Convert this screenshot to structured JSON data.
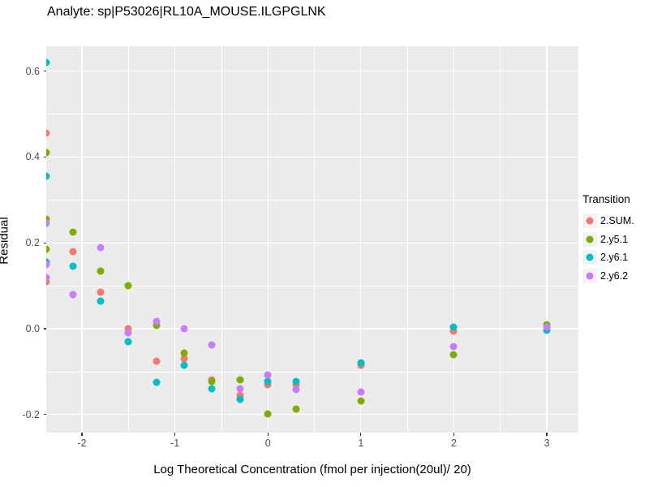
{
  "title": "Analyte: sp|P53026|RL10A_MOUSE.ILGPGLNK",
  "panel_background": "#EBEBEB",
  "gridline_color": "#FFFFFF",
  "tick_label_color": "#4D4D4D",
  "chart_data": {
    "type": "scatter",
    "title": "Analyte: sp|P53026|RL10A_MOUSE.ILGPGLNK",
    "xlabel": "Log Theoretical Concentration (fmol per injection(20ul)/ 20)",
    "ylabel": "Residual",
    "xlim": [
      -2.384,
      3.34
    ],
    "ylim": [
      -0.242,
      0.658
    ],
    "grid": "white major+minor gridlines on gray panel",
    "legend_title": "Transition",
    "legend_position": "right",
    "x_ticks": [
      {
        "label": "-2",
        "value": -2
      },
      {
        "label": "-1",
        "value": -1
      },
      {
        "label": "0",
        "value": 0
      },
      {
        "label": "1",
        "value": 1
      },
      {
        "label": "2",
        "value": 2
      },
      {
        "label": "3",
        "value": 3
      }
    ],
    "y_ticks": [
      {
        "label": "0.6",
        "value": 0.6
      },
      {
        "label": "0.4",
        "value": 0.4
      },
      {
        "label": "0.2",
        "value": 0.2
      },
      {
        "label": "0.0",
        "value": 0.0
      },
      {
        "label": "-0.2",
        "value": -0.2
      }
    ],
    "x_minor_ticks": [
      -1.5,
      -0.5,
      0.5,
      1.5,
      2.5
    ],
    "y_minor_ticks": [
      0.5,
      0.3,
      0.1,
      -0.1
    ],
    "series": [
      {
        "name": "2.SUM.",
        "color": "#F8766D",
        "points": [
          [
            -2.38,
            0.455
          ],
          [
            -2.38,
            0.11
          ],
          [
            -2.1,
            0.18
          ],
          [
            -1.8,
            0.085
          ],
          [
            -1.5,
            0.0
          ],
          [
            -1.2,
            -0.075
          ],
          [
            -0.9,
            -0.07
          ],
          [
            -0.6,
            -0.12
          ],
          [
            -0.3,
            -0.155
          ],
          [
            0.0,
            -0.13
          ],
          [
            0.3,
            -0.13
          ],
          [
            1.0,
            -0.086
          ],
          [
            2.0,
            -0.006
          ]
        ]
      },
      {
        "name": "2.y5.1",
        "color": "#7CAE00",
        "points": [
          [
            -2.38,
            0.41
          ],
          [
            -2.38,
            0.255
          ],
          [
            -2.38,
            0.185
          ],
          [
            -2.1,
            0.225
          ],
          [
            -1.8,
            0.135
          ],
          [
            -1.5,
            0.1
          ],
          [
            -1.2,
            0.008
          ],
          [
            -0.9,
            -0.057
          ],
          [
            -0.6,
            -0.122
          ],
          [
            -0.3,
            -0.12
          ],
          [
            0.0,
            -0.198
          ],
          [
            0.3,
            -0.188
          ],
          [
            1.0,
            -0.168
          ],
          [
            2.0,
            -0.06
          ],
          [
            3.0,
            0.01
          ]
        ]
      },
      {
        "name": "2.y6.1",
        "color": "#00BFC4",
        "points": [
          [
            -2.38,
            0.62
          ],
          [
            -2.38,
            0.355
          ],
          [
            -2.38,
            0.155
          ],
          [
            -2.1,
            0.145
          ],
          [
            -1.8,
            0.065
          ],
          [
            -1.5,
            -0.03
          ],
          [
            -1.2,
            -0.125
          ],
          [
            -0.9,
            -0.085
          ],
          [
            -0.6,
            -0.14
          ],
          [
            -0.3,
            -0.165
          ],
          [
            0.0,
            -0.123
          ],
          [
            0.3,
            -0.123
          ],
          [
            1.0,
            -0.079
          ],
          [
            2.0,
            0.004
          ],
          [
            3.0,
            -0.003
          ]
        ]
      },
      {
        "name": "2.y6.2",
        "color": "#C77CFF",
        "points": [
          [
            -2.38,
            0.245
          ],
          [
            -2.38,
            0.15
          ],
          [
            -2.38,
            0.12
          ],
          [
            -2.1,
            0.08
          ],
          [
            -1.8,
            0.19
          ],
          [
            -1.5,
            -0.01
          ],
          [
            -1.2,
            0.017
          ],
          [
            -0.9,
            0.0
          ],
          [
            -0.6,
            -0.037
          ],
          [
            -0.3,
            -0.14
          ],
          [
            0.0,
            -0.107
          ],
          [
            0.3,
            -0.141
          ],
          [
            1.0,
            -0.148
          ],
          [
            2.0,
            -0.042
          ],
          [
            3.0,
            0.004
          ]
        ]
      }
    ]
  }
}
